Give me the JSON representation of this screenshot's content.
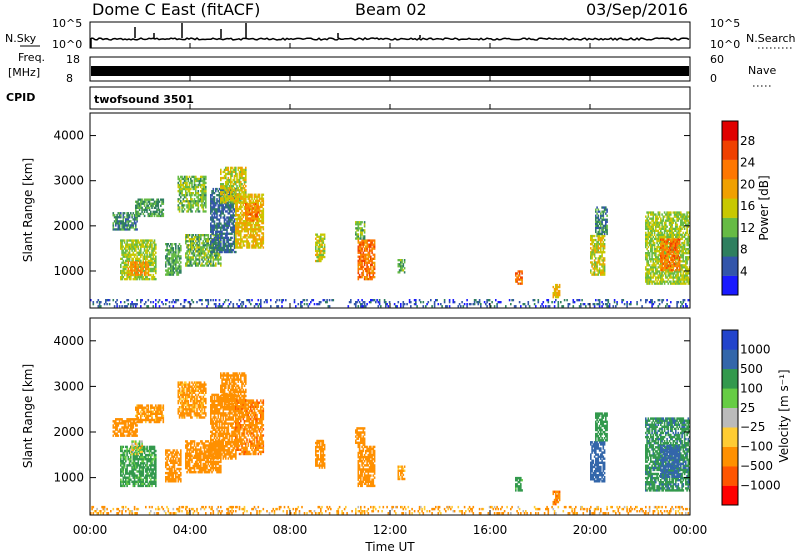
{
  "header": {
    "station": "Dome C East (fitACF)",
    "beam": "Beam 02",
    "date": "03/Sep/2016"
  },
  "noise_panel": {
    "left_label": "N.Sky",
    "left_ticks": [
      "10^5",
      "10^0"
    ],
    "right_label": "N.Search",
    "right_ticks": [
      "10^5",
      "10^0"
    ]
  },
  "freq_panel": {
    "left_label_1": "Freq.",
    "left_label_2": "[MHz]",
    "left_ticks": [
      "18",
      "8"
    ],
    "right_label": "Nave",
    "right_ticks": [
      "60",
      "0"
    ],
    "cpid_label": "CPID",
    "cpid_value": "twofsound 3501"
  },
  "colors": {
    "power_scale": [
      "#1a1aff",
      "#3355aa",
      "#2f7f5f",
      "#66bb44",
      "#c8c800",
      "#f0a000",
      "#ff7700",
      "#f04000",
      "#e00000"
    ],
    "velocity_scale": [
      "#ff0000",
      "#ff5500",
      "#ff9000",
      "#ffcc33",
      "#bbbbbb",
      "#66cc44",
      "#33994d",
      "#3366aa",
      "#2244cc"
    ]
  },
  "chart_data": [
    {
      "type": "heatmap",
      "name": "power",
      "ylabel": "Slant Range [km]",
      "yticks": [
        "4000",
        "3000",
        "2000",
        "1000"
      ],
      "ylim": [
        180,
        4500
      ],
      "xlim": [
        0,
        24
      ],
      "colorbar_label": "Power [dB]",
      "colorbar_ticks": [
        "28",
        "24",
        "20",
        "16",
        "12",
        "8",
        "4"
      ],
      "colorbar_range": [
        0,
        32
      ],
      "regions": [
        {
          "t0": 0.9,
          "t1": 1.9,
          "r0": 1900,
          "r1": 2300,
          "v": 10
        },
        {
          "t0": 1.2,
          "t1": 2.6,
          "r0": 800,
          "r1": 1700,
          "v": 16
        },
        {
          "t0": 1.5,
          "t1": 2.3,
          "r0": 900,
          "r1": 1200,
          "v": 24
        },
        {
          "t0": 1.8,
          "t1": 2.9,
          "r0": 2200,
          "r1": 2600,
          "v": 12
        },
        {
          "t0": 3.0,
          "t1": 3.6,
          "r0": 900,
          "r1": 1600,
          "v": 12
        },
        {
          "t0": 3.5,
          "t1": 4.6,
          "r0": 2300,
          "r1": 3100,
          "v": 14
        },
        {
          "t0": 3.8,
          "t1": 5.2,
          "r0": 1100,
          "r1": 1800,
          "v": 14
        },
        {
          "t0": 4.8,
          "t1": 5.8,
          "r0": 1400,
          "r1": 2800,
          "v": 8
        },
        {
          "t0": 5.2,
          "t1": 6.2,
          "r0": 2500,
          "r1": 3300,
          "v": 18
        },
        {
          "t0": 5.8,
          "t1": 6.9,
          "r0": 1500,
          "r1": 2700,
          "v": 20
        },
        {
          "t0": 6.2,
          "t1": 6.7,
          "r0": 2100,
          "r1": 2500,
          "v": 26
        },
        {
          "t0": 9.0,
          "t1": 9.4,
          "r0": 1200,
          "r1": 1800,
          "v": 18
        },
        {
          "t0": 10.7,
          "t1": 11.4,
          "r0": 800,
          "r1": 1700,
          "v": 26
        },
        {
          "t0": 10.6,
          "t1": 11.0,
          "r0": 1700,
          "r1": 2100,
          "v": 14
        },
        {
          "t0": 12.3,
          "t1": 12.6,
          "r0": 950,
          "r1": 1250,
          "v": 14
        },
        {
          "t0": 17.0,
          "t1": 17.3,
          "r0": 700,
          "r1": 1000,
          "v": 26
        },
        {
          "t0": 18.5,
          "t1": 18.8,
          "r0": 400,
          "r1": 700,
          "v": 20
        },
        {
          "t0": 20.0,
          "t1": 20.6,
          "r0": 900,
          "r1": 1800,
          "v": 18
        },
        {
          "t0": 20.2,
          "t1": 20.7,
          "r0": 1800,
          "r1": 2400,
          "v": 10
        },
        {
          "t0": 22.2,
          "t1": 24.0,
          "r0": 700,
          "r1": 2300,
          "v": 16
        },
        {
          "t0": 22.8,
          "t1": 23.6,
          "r0": 1000,
          "r1": 1700,
          "v": 26
        },
        {
          "t0": 0.0,
          "t1": 24.0,
          "r0": 200,
          "r1": 350,
          "v": 6
        }
      ]
    },
    {
      "type": "heatmap",
      "name": "velocity",
      "ylabel": "Slant Range [km]",
      "yticks": [
        "4000",
        "3000",
        "2000",
        "1000"
      ],
      "ylim": [
        180,
        4500
      ],
      "xlim": [
        0,
        24
      ],
      "xticks": [
        "00:00",
        "04:00",
        "08:00",
        "12:00",
        "16:00",
        "20:00",
        "00:00"
      ],
      "xlabel": "Time UT",
      "colorbar_label": "Velocity [m s⁻¹]",
      "colorbar_ticks": [
        "1000",
        "500",
        "100",
        "25",
        "−25",
        "−100",
        "−500",
        "−1000"
      ],
      "regions": [
        {
          "t0": 0.9,
          "t1": 1.9,
          "r0": 1900,
          "r1": 2300,
          "v": -300
        },
        {
          "t0": 1.2,
          "t1": 2.6,
          "r0": 800,
          "r1": 1700,
          "v": 200
        },
        {
          "t0": 1.6,
          "t1": 2.1,
          "r0": 1500,
          "r1": 1800,
          "v": 0
        },
        {
          "t0": 1.8,
          "t1": 2.9,
          "r0": 2200,
          "r1": 2600,
          "v": -200
        },
        {
          "t0": 3.0,
          "t1": 3.6,
          "r0": 900,
          "r1": 1600,
          "v": -300
        },
        {
          "t0": 3.5,
          "t1": 4.6,
          "r0": 2300,
          "r1": 3100,
          "v": -200
        },
        {
          "t0": 3.8,
          "t1": 5.2,
          "r0": 1100,
          "r1": 1800,
          "v": -350
        },
        {
          "t0": 4.8,
          "t1": 5.8,
          "r0": 1400,
          "r1": 2800,
          "v": -250
        },
        {
          "t0": 5.2,
          "t1": 6.2,
          "r0": 2500,
          "r1": 3300,
          "v": -300
        },
        {
          "t0": 5.8,
          "t1": 6.9,
          "r0": 1500,
          "r1": 2700,
          "v": -400
        },
        {
          "t0": 9.0,
          "t1": 9.4,
          "r0": 1200,
          "r1": 1800,
          "v": -300
        },
        {
          "t0": 10.7,
          "t1": 11.4,
          "r0": 800,
          "r1": 1700,
          "v": -350
        },
        {
          "t0": 10.6,
          "t1": 11.0,
          "r0": 1700,
          "r1": 2100,
          "v": -250
        },
        {
          "t0": 12.3,
          "t1": 12.6,
          "r0": 950,
          "r1": 1250,
          "v": -200
        },
        {
          "t0": 17.0,
          "t1": 17.3,
          "r0": 700,
          "r1": 1000,
          "v": 200
        },
        {
          "t0": 18.5,
          "t1": 18.8,
          "r0": 400,
          "r1": 700,
          "v": -400
        },
        {
          "t0": 20.0,
          "t1": 20.6,
          "r0": 900,
          "r1": 1800,
          "v": 800
        },
        {
          "t0": 20.2,
          "t1": 20.7,
          "r0": 1800,
          "r1": 2400,
          "v": 300
        },
        {
          "t0": 22.2,
          "t1": 24.0,
          "r0": 700,
          "r1": 2300,
          "v": 400
        },
        {
          "t0": 22.8,
          "t1": 23.6,
          "r0": 1000,
          "r1": 1700,
          "v": 700
        },
        {
          "t0": 0.0,
          "t1": 24.0,
          "r0": 200,
          "r1": 350,
          "v": -150
        }
      ]
    }
  ]
}
